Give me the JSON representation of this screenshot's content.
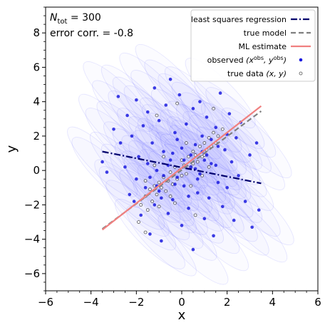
{
  "chart_data": {
    "type": "scatter",
    "xlabel": "x",
    "ylabel": "y",
    "xlim": [
      -6,
      6
    ],
    "ylim": [
      -7,
      9.5
    ],
    "x_ticks": [
      -6,
      -4,
      -2,
      0,
      2,
      4,
      6
    ],
    "y_ticks": [
      -6,
      -4,
      -2,
      0,
      2,
      4,
      6,
      8
    ],
    "x_tick_labels": [
      "−6",
      "−4",
      "−2",
      "0",
      "2",
      "4",
      "6"
    ],
    "y_tick_labels": [
      "−6",
      "−4",
      "−2",
      "0",
      "2",
      "4",
      "6",
      "8"
    ],
    "grid": false,
    "annotations": {
      "n_prefix": "N",
      "n_subscript": "tot",
      "n_value": " = 300",
      "error_corr": "error corr. = -0.8"
    },
    "legend": {
      "placement": "top-right",
      "entries": [
        {
          "label": "least squares regression",
          "style": "dashdot",
          "color": "#00006e"
        },
        {
          "label": "true model",
          "style": "dashed",
          "color": "#808080"
        },
        {
          "label": "ML estimate",
          "style": "solid",
          "color": "#f08080"
        },
        {
          "label": "observed",
          "math_parts": [
            "(x",
            "obs",
            ", y",
            "obs",
            ")"
          ],
          "style": "dot",
          "color": "#1a1adf"
        },
        {
          "label": "true data",
          "math_parts": [
            "(x, y)"
          ],
          "style": "open-circle",
          "color": "#555555"
        }
      ]
    },
    "lines": [
      {
        "name": "least squares regression",
        "x": [
          -3.5,
          3.5
        ],
        "y": [
          1.1,
          -0.75
        ],
        "color": "#00006e",
        "style": "dashdot"
      },
      {
        "name": "true model",
        "x": [
          -3.5,
          3.5
        ],
        "y": [
          -3.4,
          3.45
        ],
        "color": "#808080",
        "style": "dashed"
      },
      {
        "name": "ML estimate",
        "x": [
          -3.5,
          3.5
        ],
        "y": [
          -3.45,
          3.75
        ],
        "color": "#f08080",
        "style": "solid"
      }
    ],
    "observed_points": [
      [
        -3.5,
        0.5
      ],
      [
        -3.3,
        -0.1
      ],
      [
        -3.0,
        2.4
      ],
      [
        -2.8,
        4.3
      ],
      [
        -2.7,
        1.6
      ],
      [
        -2.5,
        0.2
      ],
      [
        -2.4,
        3.2
      ],
      [
        -2.3,
        -1.4
      ],
      [
        -2.2,
        2.0
      ],
      [
        -2.0,
        4.1
      ],
      [
        -2.0,
        -0.5
      ],
      [
        -1.9,
        0.8
      ],
      [
        -1.8,
        -2.6
      ],
      [
        -1.7,
        2.6
      ],
      [
        -1.6,
        -1.0
      ],
      [
        -1.5,
        3.4
      ],
      [
        -1.5,
        0.4
      ],
      [
        -1.4,
        -3.7
      ],
      [
        -1.3,
        1.6
      ],
      [
        -1.2,
        -2.0
      ],
      [
        -1.2,
        4.8
      ],
      [
        -1.1,
        0.0
      ],
      [
        -1.0,
        -1.2
      ],
      [
        -1.0,
        2.9
      ],
      [
        -0.9,
        -4.1
      ],
      [
        -0.8,
        1.1
      ],
      [
        -0.8,
        -0.3
      ],
      [
        -0.7,
        3.8
      ],
      [
        -0.6,
        -2.5
      ],
      [
        -0.5,
        0.6
      ],
      [
        -0.5,
        5.3
      ],
      [
        -0.4,
        -1.7
      ],
      [
        -0.3,
        2.2
      ],
      [
        -0.2,
        -0.4
      ],
      [
        -0.1,
        4.4
      ],
      [
        0.0,
        1.3
      ],
      [
        0.0,
        -3.2
      ],
      [
        0.1,
        -0.9
      ],
      [
        0.2,
        2.7
      ],
      [
        0.3,
        -2.2
      ],
      [
        0.4,
        0.2
      ],
      [
        0.5,
        3.6
      ],
      [
        0.5,
        -4.6
      ],
      [
        0.6,
        1.5
      ],
      [
        0.7,
        -1.3
      ],
      [
        0.8,
        4.0
      ],
      [
        0.8,
        -0.2
      ],
      [
        0.9,
        2.0
      ],
      [
        1.0,
        -2.8
      ],
      [
        1.1,
        0.9
      ],
      [
        1.1,
        3.1
      ],
      [
        1.2,
        -1.6
      ],
      [
        1.3,
        1.8
      ],
      [
        1.4,
        -3.8
      ],
      [
        1.5,
        0.3
      ],
      [
        1.5,
        2.5
      ],
      [
        1.6,
        -0.7
      ],
      [
        1.7,
        4.5
      ],
      [
        1.8,
        -2.1
      ],
      [
        1.9,
        1.2
      ],
      [
        2.0,
        -1.0
      ],
      [
        2.1,
        3.3
      ],
      [
        2.2,
        0.5
      ],
      [
        2.3,
        -2.9
      ],
      [
        2.4,
        1.9
      ],
      [
        2.5,
        -0.3
      ],
      [
        2.6,
        2.8
      ],
      [
        2.8,
        -1.8
      ],
      [
        3.0,
        0.9
      ],
      [
        3.1,
        -3.3
      ],
      [
        3.3,
        1.6
      ],
      [
        3.4,
        -2.3
      ],
      [
        -0.3,
        -0.8
      ],
      [
        0.4,
        0.9
      ],
      [
        -0.6,
        0.3
      ],
      [
        0.7,
        -0.5
      ],
      [
        1.3,
        0.4
      ],
      [
        -1.1,
        -0.9
      ],
      [
        0.1,
        0.6
      ],
      [
        -0.2,
        1.8
      ],
      [
        0.9,
        1.1
      ],
      [
        -0.9,
        -1.6
      ],
      [
        1.6,
        1.4
      ],
      [
        -1.4,
        -0.4
      ],
      [
        0.3,
        -1.5
      ],
      [
        2.0,
        2.1
      ],
      [
        -2.1,
        -1.8
      ],
      [
        0.6,
        0.1
      ],
      [
        -0.4,
        1.0
      ],
      [
        1.0,
        0.6
      ]
    ],
    "true_points": [
      [
        -1.8,
        -2.0
      ],
      [
        -1.6,
        -1.5
      ],
      [
        -1.5,
        -2.3
      ],
      [
        -1.4,
        -1.1
      ],
      [
        -1.3,
        -1.8
      ],
      [
        -1.2,
        -0.9
      ],
      [
        -1.1,
        -1.4
      ],
      [
        -1.0,
        -0.7
      ],
      [
        -1.0,
        -2.1
      ],
      [
        -0.9,
        -1.0
      ],
      [
        -0.8,
        -0.4
      ],
      [
        -0.7,
        -1.2
      ],
      [
        -0.6,
        -0.6
      ],
      [
        -0.5,
        -0.1
      ],
      [
        -0.5,
        -1.5
      ],
      [
        -0.4,
        -0.8
      ],
      [
        -0.3,
        0.2
      ],
      [
        -0.2,
        -0.5
      ],
      [
        -0.1,
        0.0
      ],
      [
        0.0,
        -0.3
      ],
      [
        0.0,
        0.6
      ],
      [
        0.1,
        0.3
      ],
      [
        0.2,
        -0.2
      ],
      [
        0.3,
        0.8
      ],
      [
        0.4,
        0.2
      ],
      [
        0.5,
        1.1
      ],
      [
        0.5,
        0.4
      ],
      [
        0.6,
        0.9
      ],
      [
        0.7,
        0.5
      ],
      [
        0.8,
        1.4
      ],
      [
        0.9,
        0.8
      ],
      [
        1.0,
        1.6
      ],
      [
        1.0,
        0.9
      ],
      [
        1.1,
        1.2
      ],
      [
        1.2,
        1.9
      ],
      [
        1.3,
        1.4
      ],
      [
        1.4,
        2.2
      ],
      [
        1.5,
        1.6
      ],
      [
        1.6,
        2.0
      ],
      [
        1.8,
        2.4
      ],
      [
        -1.2,
        0.3
      ],
      [
        -0.8,
        0.8
      ],
      [
        0.2,
        1.6
      ],
      [
        0.9,
        -0.3
      ],
      [
        1.2,
        0.2
      ],
      [
        -0.3,
        -1.9
      ],
      [
        0.4,
        -0.9
      ],
      [
        -1.6,
        -0.6
      ],
      [
        -0.2,
        3.9
      ],
      [
        1.4,
        3.6
      ],
      [
        -1.1,
        3.2
      ],
      [
        0.6,
        -2.6
      ],
      [
        -1.9,
        -3.0
      ],
      [
        -1.6,
        -3.6
      ]
    ]
  }
}
